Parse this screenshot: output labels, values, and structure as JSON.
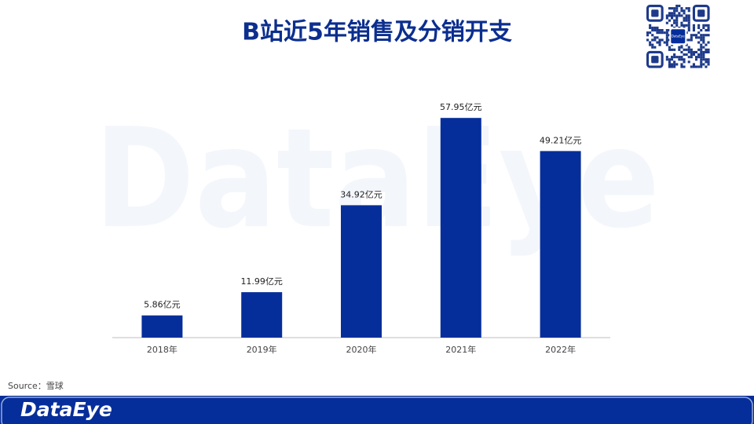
{
  "chart_data": {
    "type": "bar",
    "title": "B站近5年销售及分销开支",
    "categories": [
      "2018年",
      "2019年",
      "2020年",
      "2021年",
      "2022年"
    ],
    "values": [
      5.86,
      11.99,
      34.92,
      57.95,
      49.21
    ],
    "value_labels": [
      "5.86亿元",
      "11.99亿元",
      "34.92亿元",
      "57.95亿元",
      "49.21亿元"
    ],
    "color": "#062e9a",
    "ylim": [
      0,
      70
    ],
    "source": "Source：雪球"
  },
  "branding": {
    "watermark": "DataEye",
    "footer_logo": "DataEye",
    "qr_label": "DataEye"
  }
}
